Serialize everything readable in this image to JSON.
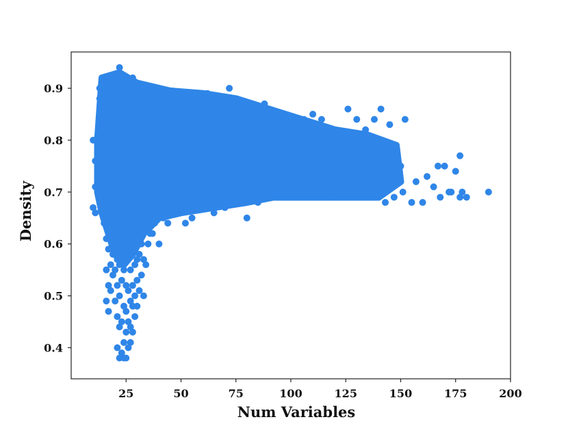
{
  "chart_data": {
    "type": "scatter",
    "title": "",
    "xlabel": "Num Variables",
    "ylabel": "Density",
    "xlim": [
      0,
      200
    ],
    "ylim": [
      0.34,
      0.97
    ],
    "xticks": [
      "25",
      "50",
      "75",
      "100",
      "125",
      "150",
      "175",
      "200"
    ],
    "yticks": [
      "0.4",
      "0.5",
      "0.6",
      "0.7",
      "0.8",
      "0.9"
    ],
    "grid": false,
    "legend": "none",
    "color": "#2f86e8",
    "series": [
      {
        "x": [
          10,
          10,
          11,
          11,
          11,
          12,
          12,
          13,
          13,
          13,
          14,
          14,
          14,
          15,
          15,
          15,
          15,
          16,
          16,
          16,
          16,
          17,
          17,
          17,
          17,
          17,
          17,
          18,
          18,
          18,
          18,
          18,
          18,
          19,
          19,
          19,
          19,
          19,
          19,
          20,
          20,
          20,
          20,
          20,
          21,
          21,
          21,
          21,
          21,
          21,
          22,
          22,
          22,
          22,
          22,
          22,
          23,
          23,
          23,
          23,
          23,
          24,
          24,
          24,
          24,
          24,
          24,
          25,
          25,
          25,
          25,
          25,
          25,
          26,
          26,
          26,
          26,
          26,
          27,
          27,
          27,
          27,
          27,
          27,
          28,
          28,
          28,
          28,
          28,
          29,
          29,
          29,
          29,
          29,
          30,
          30,
          30,
          30,
          30,
          31,
          31,
          31,
          32,
          32,
          33,
          33,
          33,
          34,
          35,
          35,
          36,
          37,
          38,
          40,
          40,
          42,
          44,
          45,
          47,
          50,
          52,
          53,
          55,
          57,
          60,
          62,
          65,
          68,
          70,
          72,
          74,
          77,
          80,
          82,
          85,
          88,
          90,
          92,
          95,
          97,
          100,
          102,
          104,
          106,
          108,
          110,
          112,
          114,
          116,
          118,
          120,
          122,
          124,
          126,
          128,
          130,
          132,
          134,
          136,
          138,
          140,
          141,
          143,
          145,
          147,
          150,
          151,
          152,
          155,
          157,
          160,
          162,
          165,
          167,
          168,
          170,
          172,
          173,
          175,
          177,
          177,
          178,
          180,
          190
        ],
        "y": [
          0.8,
          0.67,
          0.76,
          0.66,
          0.71,
          0.73,
          0.79,
          0.88,
          0.7,
          0.9,
          0.85,
          0.74,
          0.68,
          0.92,
          0.78,
          0.64,
          0.83,
          0.55,
          0.49,
          0.61,
          0.81,
          0.59,
          0.52,
          0.47,
          0.92,
          0.75,
          0.69,
          0.56,
          0.51,
          0.62,
          0.87,
          0.72,
          0.66,
          0.54,
          0.58,
          0.63,
          0.9,
          0.77,
          0.82,
          0.49,
          0.55,
          0.6,
          0.86,
          0.7,
          0.4,
          0.46,
          0.52,
          0.57,
          0.92,
          0.8,
          0.38,
          0.44,
          0.5,
          0.56,
          0.94,
          0.74,
          0.39,
          0.45,
          0.53,
          0.59,
          0.88,
          0.38,
          0.41,
          0.48,
          0.55,
          0.91,
          0.67,
          0.38,
          0.43,
          0.47,
          0.52,
          0.6,
          0.86,
          0.4,
          0.45,
          0.51,
          0.58,
          0.9,
          0.41,
          0.44,
          0.49,
          0.55,
          0.61,
          0.82,
          0.43,
          0.48,
          0.52,
          0.59,
          0.92,
          0.46,
          0.5,
          0.56,
          0.63,
          0.88,
          0.48,
          0.53,
          0.57,
          0.62,
          0.79,
          0.51,
          0.58,
          0.85,
          0.54,
          0.6,
          0.5,
          0.57,
          0.89,
          0.56,
          0.6,
          0.88,
          0.62,
          0.62,
          0.64,
          0.6,
          0.88,
          0.65,
          0.64,
          0.89,
          0.66,
          0.88,
          0.64,
          0.89,
          0.65,
          0.88,
          0.67,
          0.89,
          0.66,
          0.88,
          0.67,
          0.9,
          0.7,
          0.86,
          0.65,
          0.85,
          0.68,
          0.87,
          0.69,
          0.85,
          0.71,
          0.84,
          0.71,
          0.83,
          0.7,
          0.84,
          0.69,
          0.85,
          0.7,
          0.84,
          0.69,
          0.82,
          0.7,
          0.8,
          0.71,
          0.86,
          0.69,
          0.84,
          0.7,
          0.82,
          0.69,
          0.84,
          0.69,
          0.86,
          0.68,
          0.83,
          0.69,
          0.75,
          0.7,
          0.84,
          0.68,
          0.72,
          0.68,
          0.73,
          0.71,
          0.75,
          0.69,
          0.75,
          0.7,
          0.7,
          0.74,
          0.77,
          0.69,
          0.7,
          0.69,
          0.7
        ]
      }
    ]
  }
}
